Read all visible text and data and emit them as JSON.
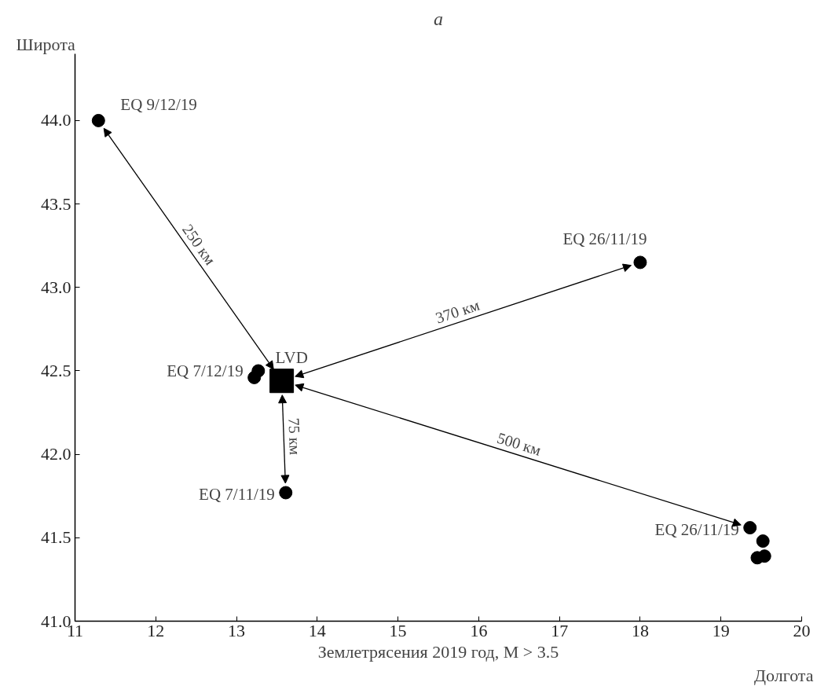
{
  "chart_data": {
    "type": "scatter",
    "title": "a",
    "xlabel": "Землетрясения 2019 год, M > 3.5",
    "ylabel": "Широта",
    "xlim": [
      11,
      20
    ],
    "ylim": [
      41,
      44.4
    ],
    "xticks": [
      11,
      12,
      13,
      14,
      15,
      16,
      17,
      18,
      19,
      20
    ],
    "yticks": [
      {
        "value": 41,
        "label": "41.0"
      },
      {
        "value": 41.5,
        "label": "41.5"
      },
      {
        "value": 42,
        "label": "42.0"
      },
      {
        "value": 42.5,
        "label": "42.5"
      },
      {
        "value": 43,
        "label": "43.0"
      },
      {
        "value": 43.5,
        "label": "43.5"
      },
      {
        "value": 44,
        "label": "44.0"
      }
    ],
    "grid": false,
    "series": [
      {
        "color": "#000000",
        "marker": "circle",
        "x": [
          11.29,
          18.0,
          13.27,
          13.22,
          13.61,
          19.36,
          19.52,
          19.45,
          19.54
        ],
        "values": [
          44.0,
          43.15,
          42.5,
          42.46,
          41.77,
          41.56,
          41.48,
          41.38,
          41.39
        ]
      },
      {
        "color": "#000000",
        "marker": "square",
        "x": [
          13.56
        ],
        "values": [
          42.44
        ]
      }
    ],
    "annotations": [
      {
        "text": "EQ 9/12/19",
        "x": 11.29,
        "y": 44.0
      },
      {
        "text": "EQ 26/11/19",
        "x": 18.0,
        "y": 43.15
      },
      {
        "text": "EQ 7/12/19",
        "x": 13.22,
        "y": 42.46
      },
      {
        "text": "EQ 7/11/19",
        "x": 13.61,
        "y": 41.77
      },
      {
        "text": "EQ 26/11/19",
        "x": 19.36,
        "y": 41.56
      },
      {
        "text": "LVD",
        "x": 13.56,
        "y": 42.44
      },
      "250 км",
      "370 км",
      "75 км",
      "500 км",
      "Долгота"
    ]
  }
}
